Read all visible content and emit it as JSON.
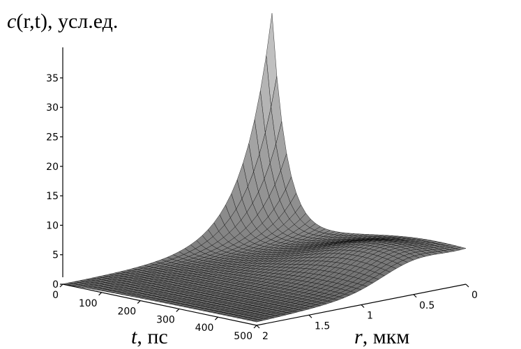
{
  "chart_data": {
    "type": "surface",
    "title": "",
    "zlabel": {
      "var": "c",
      "args": "(r,t)",
      "unit": ", усл.ед."
    },
    "xlabel": {
      "var": "t",
      "unit": ", пс"
    },
    "ylabel": {
      "var": "r",
      "unit": ", мкм"
    },
    "t_ticks": [
      "0",
      "100",
      "200",
      "300",
      "400",
      "500"
    ],
    "r_ticks": [
      "0",
      "0.5",
      "1",
      "1.5",
      "2"
    ],
    "z_ticks": [
      "0",
      "5",
      "10",
      "15",
      "20",
      "25",
      "30",
      "35"
    ],
    "t_range": [
      0,
      500
    ],
    "r_range": [
      0,
      2
    ],
    "z_range": [
      0,
      39
    ],
    "peak": {
      "t": 0,
      "r": 0,
      "c": 39
    },
    "secondary_ridge": {
      "r": 0.5,
      "t": 400,
      "c": 7
    },
    "surface_color": "#8a8a8a",
    "mesh_color": "#000000"
  }
}
